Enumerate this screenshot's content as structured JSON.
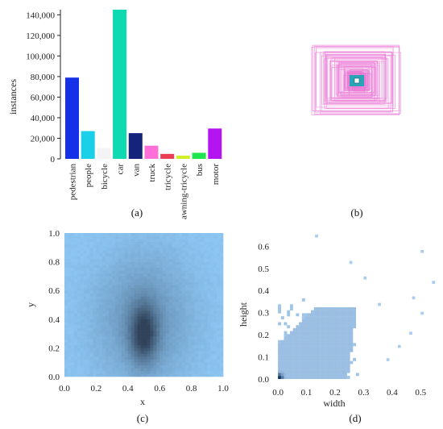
{
  "captions": [
    "(a)",
    "(b)",
    "(c)",
    "(d)"
  ],
  "chart_data": [
    {
      "type": "bar",
      "panel": "a",
      "ylabel": "instances",
      "xlabel": "",
      "ylim": [
        0,
        145000
      ],
      "yticks": [
        0,
        20000,
        40000,
        60000,
        80000,
        100000,
        120000,
        140000
      ],
      "ytick_labels": [
        "0",
        "20,000",
        "40,000",
        "60,000",
        "80,000",
        "100,000",
        "120,000",
        "140,000"
      ],
      "categories": [
        "pedestrian",
        "people",
        "bicycle",
        "car",
        "van",
        "truck",
        "tricycle",
        "awning-tricycle",
        "bus",
        "motor"
      ],
      "values": [
        79000,
        27000,
        10500,
        145000,
        25000,
        12800,
        4800,
        3200,
        5900,
        29500
      ],
      "colors": [
        "#1431e8",
        "#1ad0e8",
        "#f4f4f4",
        "#0fd9b0",
        "#15237a",
        "#ff6fd8",
        "#ea3e55",
        "#cff02a",
        "#1ee64e",
        "#b314f0"
      ],
      "grid": false
    },
    {
      "type": "box-overlay",
      "panel": "b",
      "description_note": "",
      "colors": {
        "outline": "#ec82d8",
        "center": "#2ba3b7"
      }
    },
    {
      "type": "heatmap",
      "panel": "c",
      "xlabel": "x",
      "ylabel": "y",
      "xlim": [
        0,
        1
      ],
      "ylim": [
        0,
        1
      ],
      "xticks": [
        0.0,
        0.2,
        0.4,
        0.6,
        0.8,
        1.0
      ],
      "xtick_labels": [
        "0.0",
        "0.2",
        "0.4",
        "0.6",
        "0.8",
        "1.0"
      ],
      "yticks": [
        0.0,
        0.2,
        0.4,
        0.6,
        0.8,
        1.0
      ],
      "ytick_labels": [
        "0.0",
        "0.2",
        "0.4",
        "0.6",
        "0.8",
        "1.0"
      ],
      "density_peak": [
        0.5,
        0.3
      ],
      "colors": {
        "low": "#8cc5f2",
        "high": "#30435a"
      }
    },
    {
      "type": "heatmap",
      "panel": "d",
      "xlabel": "width",
      "ylabel": "height",
      "xlim": [
        -0.02,
        0.55
      ],
      "ylim": [
        -0.03,
        0.66
      ],
      "xticks": [
        0.0,
        0.1,
        0.2,
        0.3,
        0.4,
        0.5
      ],
      "xtick_labels": [
        "0.0",
        "0.1",
        "0.2",
        "0.3",
        "0.4",
        "0.5"
      ],
      "yticks": [
        0.0,
        0.1,
        0.2,
        0.3,
        0.4,
        0.5,
        0.6
      ],
      "ytick_labels": [
        "0.0",
        "0.1",
        "0.2",
        "0.3",
        "0.4",
        "0.5",
        "0.6"
      ],
      "density_peak": [
        0.01,
        0.02
      ],
      "colors": {
        "low": "#a9cdee",
        "high": "#0f3566"
      }
    }
  ]
}
